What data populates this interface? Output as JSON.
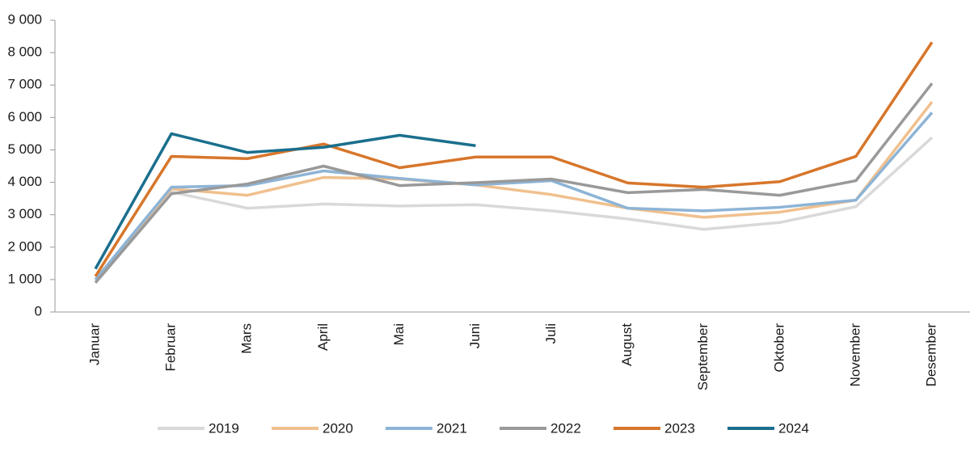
{
  "chart_data": {
    "type": "line",
    "categories": [
      "Januar",
      "Februar",
      "Mars",
      "April",
      "Mai",
      "Juni",
      "Juli",
      "August",
      "September",
      "Oktober",
      "November",
      "Desember"
    ],
    "series": [
      {
        "name": "2019",
        "color": "#d9d9d9",
        "values": [
          950,
          3700,
          3200,
          3330,
          3270,
          3310,
          3120,
          2870,
          2550,
          2760,
          3250,
          5380
        ]
      },
      {
        "name": "2020",
        "color": "#f0c08e",
        "values": [
          1000,
          3800,
          3600,
          4150,
          4100,
          3920,
          3620,
          3200,
          2920,
          3080,
          3450,
          6480
        ]
      },
      {
        "name": "2021",
        "color": "#8db4d6",
        "values": [
          1000,
          3850,
          3900,
          4350,
          4120,
          3920,
          4050,
          3200,
          3120,
          3230,
          3450,
          6150
        ]
      },
      {
        "name": "2022",
        "color": "#999999",
        "values": [
          900,
          3650,
          3950,
          4500,
          3900,
          3990,
          4100,
          3680,
          3780,
          3600,
          4050,
          7050
        ]
      },
      {
        "name": "2023",
        "color": "#d7762b",
        "values": [
          1100,
          4800,
          4730,
          5180,
          4450,
          4780,
          4780,
          3980,
          3850,
          4020,
          4800,
          8320
        ]
      },
      {
        "name": "2024",
        "color": "#1a6f8d",
        "values": [
          1330,
          5500,
          4920,
          5080,
          5450,
          5130,
          null,
          null,
          null,
          null,
          null,
          null
        ]
      }
    ],
    "ylim": [
      0,
      9000
    ],
    "yticks": [
      0,
      {
        "value": 1000,
        "label": "1 000"
      },
      {
        "value": 2000,
        "label": "2 000"
      },
      {
        "value": 3000,
        "label": "3 000"
      },
      {
        "value": 4000,
        "label": "4 000"
      },
      {
        "value": 5000,
        "label": "5 000"
      },
      {
        "value": 6000,
        "label": "6 000"
      },
      {
        "value": 7000,
        "label": "7 000"
      },
      {
        "value": 8000,
        "label": "8 000"
      },
      {
        "value": 9000,
        "label": "9 000"
      }
    ],
    "legend": "bottom"
  }
}
